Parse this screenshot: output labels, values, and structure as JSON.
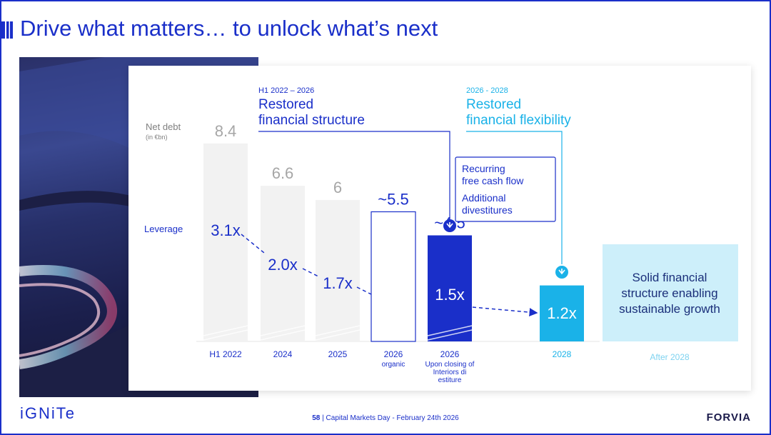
{
  "page": {
    "title": "Drive what matters… to unlock what’s next",
    "footer_page": "58",
    "footer_text": "Capital Markets Day - February 24th 2026",
    "logo": "iGNiTe",
    "brand": "FORVIA"
  },
  "colors": {
    "accent": "#1a2fc9",
    "cyan": "#1ab2e8",
    "light_cyan": "#cdeffa",
    "grey_bar": "#f2f2f2",
    "grey_text": "#a6a6a6"
  },
  "chart_data": {
    "type": "bar",
    "categories": [
      "H1 2022",
      "2024",
      "2025",
      "2026",
      "2026",
      "2028",
      "After 2028"
    ],
    "sub_labels": [
      "",
      "",
      "",
      "organic",
      "Upon closing of Interiors divestiture",
      "",
      ""
    ],
    "net_debt_label": "Net debt",
    "net_debt_unit": "(in €bn)",
    "leverage_label": "Leverage",
    "net_debt_values": [
      8.4,
      6.6,
      6,
      5.5,
      4.5,
      null,
      null
    ],
    "net_debt_labels": [
      "8.4",
      "6.6",
      "6",
      "~5.5",
      "~4.5",
      "",
      ""
    ],
    "leverage_values": [
      3.1,
      2.0,
      1.7,
      null,
      1.5,
      1.2,
      null
    ],
    "leverage_labels": [
      "3.1x",
      "2.0x",
      "1.7x",
      "",
      "1.5x",
      "1.2x",
      ""
    ],
    "phase1": {
      "period": "H1 2022 – 2026",
      "title_line1": "Restored",
      "title_line2": "financial structure"
    },
    "phase2": {
      "period": "2026 - 2028",
      "title_line1": "Restored",
      "title_line2": "financial flexibility"
    },
    "drivers": [
      "Recurring",
      "free cash flow",
      "Additional",
      "divestitures"
    ],
    "target_lines": [
      "Solid financial",
      "structure enabling",
      "sustainable growth"
    ]
  }
}
